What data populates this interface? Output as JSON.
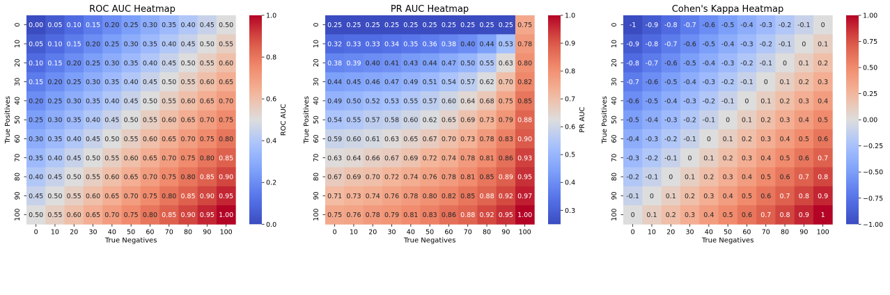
{
  "chart_data": [
    {
      "type": "heatmap",
      "title": "ROC AUC Heatmap",
      "xlabel": "True Negatives",
      "ylabel": "True Positives",
      "x_ticks": [
        "0",
        "10",
        "20",
        "30",
        "40",
        "50",
        "60",
        "70",
        "80",
        "90",
        "100"
      ],
      "y_ticks": [
        "0",
        "10",
        "20",
        "30",
        "40",
        "50",
        "60",
        "70",
        "80",
        "90",
        "100"
      ],
      "colorbar": {
        "label": "ROC AUC",
        "min": 0.0,
        "max": 1.0,
        "ticks": [
          "0.0",
          "0.2",
          "0.4",
          "0.6",
          "0.8",
          "1.0"
        ]
      },
      "values": [
        [
          "0.00",
          "0.05",
          "0.10",
          "0.15",
          "0.20",
          "0.25",
          "0.30",
          "0.35",
          "0.40",
          "0.45",
          "0.50"
        ],
        [
          "0.05",
          "0.10",
          "0.15",
          "0.20",
          "0.25",
          "0.30",
          "0.35",
          "0.40",
          "0.45",
          "0.50",
          "0.55"
        ],
        [
          "0.10",
          "0.15",
          "0.20",
          "0.25",
          "0.30",
          "0.35",
          "0.40",
          "0.45",
          "0.50",
          "0.55",
          "0.60"
        ],
        [
          "0.15",
          "0.20",
          "0.25",
          "0.30",
          "0.35",
          "0.40",
          "0.45",
          "0.50",
          "0.55",
          "0.60",
          "0.65"
        ],
        [
          "0.20",
          "0.25",
          "0.30",
          "0.35",
          "0.40",
          "0.45",
          "0.50",
          "0.55",
          "0.60",
          "0.65",
          "0.70"
        ],
        [
          "0.25",
          "0.30",
          "0.35",
          "0.40",
          "0.45",
          "0.50",
          "0.55",
          "0.60",
          "0.65",
          "0.70",
          "0.75"
        ],
        [
          "0.30",
          "0.35",
          "0.40",
          "0.45",
          "0.50",
          "0.55",
          "0.60",
          "0.65",
          "0.70",
          "0.75",
          "0.80"
        ],
        [
          "0.35",
          "0.40",
          "0.45",
          "0.50",
          "0.55",
          "0.60",
          "0.65",
          "0.70",
          "0.75",
          "0.80",
          "0.85"
        ],
        [
          "0.40",
          "0.45",
          "0.50",
          "0.55",
          "0.60",
          "0.65",
          "0.70",
          "0.75",
          "0.80",
          "0.85",
          "0.90"
        ],
        [
          "0.45",
          "0.50",
          "0.55",
          "0.60",
          "0.65",
          "0.70",
          "0.75",
          "0.80",
          "0.85",
          "0.90",
          "0.95"
        ],
        [
          "0.50",
          "0.55",
          "0.60",
          "0.65",
          "0.70",
          "0.75",
          "0.80",
          "0.85",
          "0.90",
          "0.95",
          "1.00"
        ]
      ]
    },
    {
      "type": "heatmap",
      "title": "PR AUC Heatmap",
      "xlabel": "True Negatives",
      "ylabel": "True Positives",
      "x_ticks": [
        "0",
        "10",
        "20",
        "30",
        "40",
        "50",
        "60",
        "70",
        "80",
        "90",
        "100"
      ],
      "y_ticks": [
        "0",
        "10",
        "20",
        "30",
        "40",
        "50",
        "60",
        "70",
        "80",
        "90",
        "100"
      ],
      "colorbar": {
        "label": "PR AUC",
        "min": 0.25,
        "max": 1.0,
        "ticks": [
          "0.3",
          "0.4",
          "0.5",
          "0.6",
          "0.7",
          "0.8",
          "0.9",
          "1.0"
        ]
      },
      "values": [
        [
          "0.25",
          "0.25",
          "0.25",
          "0.25",
          "0.25",
          "0.25",
          "0.25",
          "0.25",
          "0.25",
          "0.25",
          "0.75"
        ],
        [
          "0.32",
          "0.33",
          "0.33",
          "0.34",
          "0.35",
          "0.36",
          "0.38",
          "0.40",
          "0.44",
          "0.53",
          "0.78"
        ],
        [
          "0.38",
          "0.39",
          "0.40",
          "0.41",
          "0.43",
          "0.44",
          "0.47",
          "0.50",
          "0.55",
          "0.63",
          "0.80"
        ],
        [
          "0.44",
          "0.45",
          "0.46",
          "0.47",
          "0.49",
          "0.51",
          "0.54",
          "0.57",
          "0.62",
          "0.70",
          "0.82"
        ],
        [
          "0.49",
          "0.50",
          "0.52",
          "0.53",
          "0.55",
          "0.57",
          "0.60",
          "0.64",
          "0.68",
          "0.75",
          "0.85"
        ],
        [
          "0.54",
          "0.55",
          "0.57",
          "0.58",
          "0.60",
          "0.62",
          "0.65",
          "0.69",
          "0.73",
          "0.79",
          "0.88"
        ],
        [
          "0.59",
          "0.60",
          "0.61",
          "0.63",
          "0.65",
          "0.67",
          "0.70",
          "0.73",
          "0.78",
          "0.83",
          "0.90"
        ],
        [
          "0.63",
          "0.64",
          "0.66",
          "0.67",
          "0.69",
          "0.72",
          "0.74",
          "0.78",
          "0.81",
          "0.86",
          "0.93"
        ],
        [
          "0.67",
          "0.69",
          "0.70",
          "0.72",
          "0.74",
          "0.76",
          "0.78",
          "0.81",
          "0.85",
          "0.89",
          "0.95"
        ],
        [
          "0.71",
          "0.73",
          "0.74",
          "0.76",
          "0.78",
          "0.80",
          "0.82",
          "0.85",
          "0.88",
          "0.92",
          "0.97"
        ],
        [
          "0.75",
          "0.76",
          "0.78",
          "0.79",
          "0.81",
          "0.83",
          "0.86",
          "0.88",
          "0.92",
          "0.95",
          "1.00"
        ]
      ]
    },
    {
      "type": "heatmap",
      "title": "Cohen's Kappa Heatmap",
      "xlabel": "True Negatives",
      "ylabel": "True Positives",
      "x_ticks": [
        "0",
        "10",
        "20",
        "30",
        "40",
        "50",
        "60",
        "70",
        "80",
        "90",
        "100"
      ],
      "y_ticks": [
        "0",
        "10",
        "20",
        "30",
        "40",
        "50",
        "60",
        "70",
        "80",
        "90",
        "100"
      ],
      "colorbar": {
        "label": "",
        "min": -1.0,
        "max": 1.0,
        "ticks": [
          "−1.00",
          "−0.75",
          "−0.50",
          "−0.25",
          "0.00",
          "0.25",
          "0.50",
          "0.75",
          "1.00"
        ]
      },
      "values": [
        [
          "-1",
          "-0.9",
          "-0.8",
          "-0.7",
          "-0.6",
          "-0.5",
          "-0.4",
          "-0.3",
          "-0.2",
          "-0.1",
          "0"
        ],
        [
          "-0.9",
          "-0.8",
          "-0.7",
          "-0.6",
          "-0.5",
          "-0.4",
          "-0.3",
          "-0.2",
          "-0.1",
          "0",
          "0.1"
        ],
        [
          "-0.8",
          "-0.7",
          "-0.6",
          "-0.5",
          "-0.4",
          "-0.3",
          "-0.2",
          "-0.1",
          "0",
          "0.1",
          "0.2"
        ],
        [
          "-0.7",
          "-0.6",
          "-0.5",
          "-0.4",
          "-0.3",
          "-0.2",
          "-0.1",
          "0",
          "0.1",
          "0.2",
          "0.3"
        ],
        [
          "-0.6",
          "-0.5",
          "-0.4",
          "-0.3",
          "-0.2",
          "-0.1",
          "0",
          "0.1",
          "0.2",
          "0.3",
          "0.4"
        ],
        [
          "-0.5",
          "-0.4",
          "-0.3",
          "-0.2",
          "-0.1",
          "0",
          "0.1",
          "0.2",
          "0.3",
          "0.4",
          "0.5"
        ],
        [
          "-0.4",
          "-0.3",
          "-0.2",
          "-0.1",
          "0",
          "0.1",
          "0.2",
          "0.3",
          "0.4",
          "0.5",
          "0.6"
        ],
        [
          "-0.3",
          "-0.2",
          "-0.1",
          "0",
          "0.1",
          "0.2",
          "0.3",
          "0.4",
          "0.5",
          "0.6",
          "0.7"
        ],
        [
          "-0.2",
          "-0.1",
          "0",
          "0.1",
          "0.2",
          "0.3",
          "0.4",
          "0.5",
          "0.6",
          "0.7",
          "0.8"
        ],
        [
          "-0.1",
          "0",
          "0.1",
          "0.2",
          "0.3",
          "0.4",
          "0.5",
          "0.6",
          "0.7",
          "0.8",
          "0.9"
        ],
        [
          "0",
          "0.1",
          "0.2",
          "0.3",
          "0.4",
          "0.5",
          "0.6",
          "0.7",
          "0.8",
          "0.9",
          "1"
        ]
      ]
    }
  ]
}
